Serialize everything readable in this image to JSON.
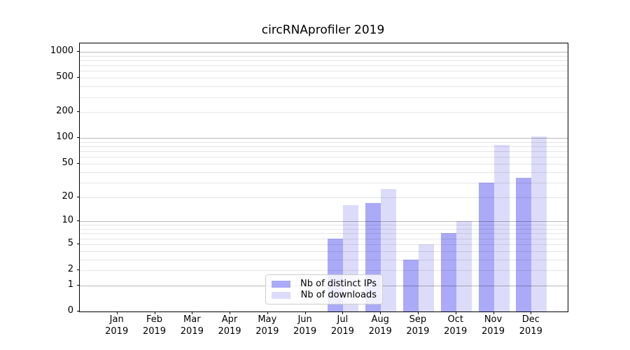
{
  "title": "circRNAprofiler 2019",
  "chart_data": {
    "type": "bar",
    "title": "circRNAprofiler 2019",
    "categories": [
      "Jan",
      "Feb",
      "Mar",
      "Apr",
      "May",
      "Jun",
      "Jul",
      "Aug",
      "Sep",
      "Oct",
      "Nov",
      "Dec"
    ],
    "x_tick_year": "2019",
    "series": [
      {
        "name": "Nb of distinct IPs",
        "color": "#aaaaf8",
        "values": [
          0,
          0,
          0,
          0,
          0,
          0,
          6,
          17,
          3,
          7,
          30,
          34
        ]
      },
      {
        "name": "Nb of downloads",
        "color": "#dcdcfa",
        "values": [
          0,
          0,
          0,
          0,
          0,
          0,
          16,
          25,
          5,
          10,
          83,
          105
        ]
      }
    ],
    "y_scale": "log10(1+y)",
    "ylim": [
      0,
      1250
    ],
    "y_ticks": [
      {
        "value": 0,
        "label": "0"
      },
      {
        "value": 1,
        "label": "1"
      },
      {
        "value": 2,
        "label": "2"
      },
      {
        "value": 5,
        "label": "5"
      },
      {
        "value": 10,
        "label": "10"
      },
      {
        "value": 20,
        "label": "20"
      },
      {
        "value": 50,
        "label": "50"
      },
      {
        "value": 100,
        "label": "100"
      },
      {
        "value": 200,
        "label": "200"
      },
      {
        "value": 500,
        "label": "500"
      },
      {
        "value": 1000,
        "label": "1000"
      }
    ],
    "grid": "horizontal",
    "legend_position": "inside-lower-center"
  }
}
